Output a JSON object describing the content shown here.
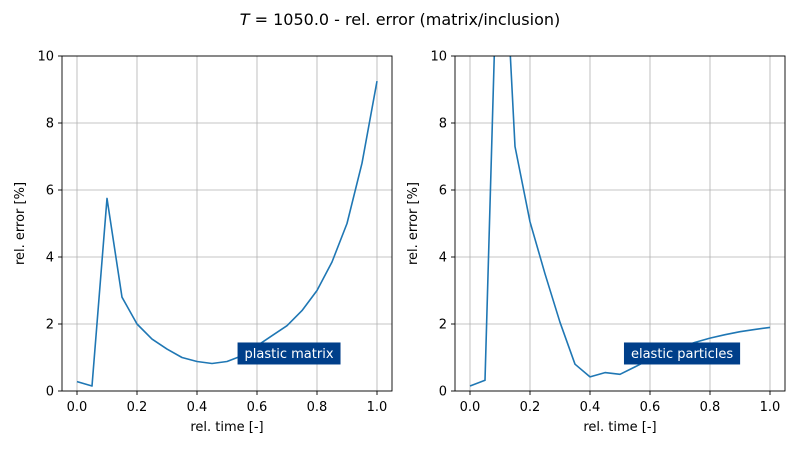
{
  "figure": {
    "title_var": "T",
    "title_rest": " = 1050.0 - rel. error (matrix/inclusion)"
  },
  "chart_data": [
    {
      "type": "line",
      "xlabel": "rel. time [-]",
      "ylabel": "rel. error [%]",
      "xlim": [
        -0.05,
        1.05
      ],
      "ylim": [
        0,
        10
      ],
      "xticks": [
        "0.0",
        "0.2",
        "0.4",
        "0.6",
        "0.8",
        "1.0"
      ],
      "yticks": [
        "0",
        "2",
        "4",
        "6",
        "8",
        "10"
      ],
      "grid": true,
      "annotation": "plastic matrix",
      "annotation_color": "#003f8a",
      "series": [
        {
          "color": "#1f77b4",
          "x": [
            0.0,
            0.05,
            0.1,
            0.15,
            0.2,
            0.25,
            0.3,
            0.35,
            0.4,
            0.45,
            0.5,
            0.55,
            0.6,
            0.65,
            0.7,
            0.75,
            0.8,
            0.85,
            0.9,
            0.95,
            1.0
          ],
          "y": [
            0.28,
            0.15,
            5.75,
            2.8,
            2.0,
            1.55,
            1.25,
            1.0,
            0.88,
            0.82,
            0.88,
            1.05,
            1.35,
            1.65,
            1.95,
            2.4,
            3.0,
            3.85,
            5.0,
            6.8,
            9.25
          ]
        }
      ]
    },
    {
      "type": "line",
      "xlabel": "rel. time [-]",
      "ylabel": "rel. error [%]",
      "xlim": [
        -0.05,
        1.05
      ],
      "ylim": [
        0,
        10
      ],
      "xticks": [
        "0.0",
        "0.2",
        "0.4",
        "0.6",
        "0.8",
        "1.0"
      ],
      "yticks": [
        "0",
        "2",
        "4",
        "6",
        "8",
        "10"
      ],
      "grid": true,
      "annotation": "elastic particles",
      "annotation_color": "#003f8a",
      "series": [
        {
          "color": "#1f77b4",
          "x": [
            0.0,
            0.05,
            0.1,
            0.15,
            0.2,
            0.25,
            0.3,
            0.35,
            0.4,
            0.45,
            0.5,
            0.55,
            0.6,
            0.65,
            0.7,
            0.75,
            0.8,
            0.85,
            0.9,
            0.95,
            1.0
          ],
          "y": [
            0.15,
            0.32,
            16.0,
            7.3,
            5.05,
            3.5,
            2.05,
            0.8,
            0.42,
            0.55,
            0.5,
            0.72,
            0.95,
            1.12,
            1.3,
            1.45,
            1.58,
            1.68,
            1.77,
            1.84,
            1.9
          ]
        }
      ]
    }
  ]
}
